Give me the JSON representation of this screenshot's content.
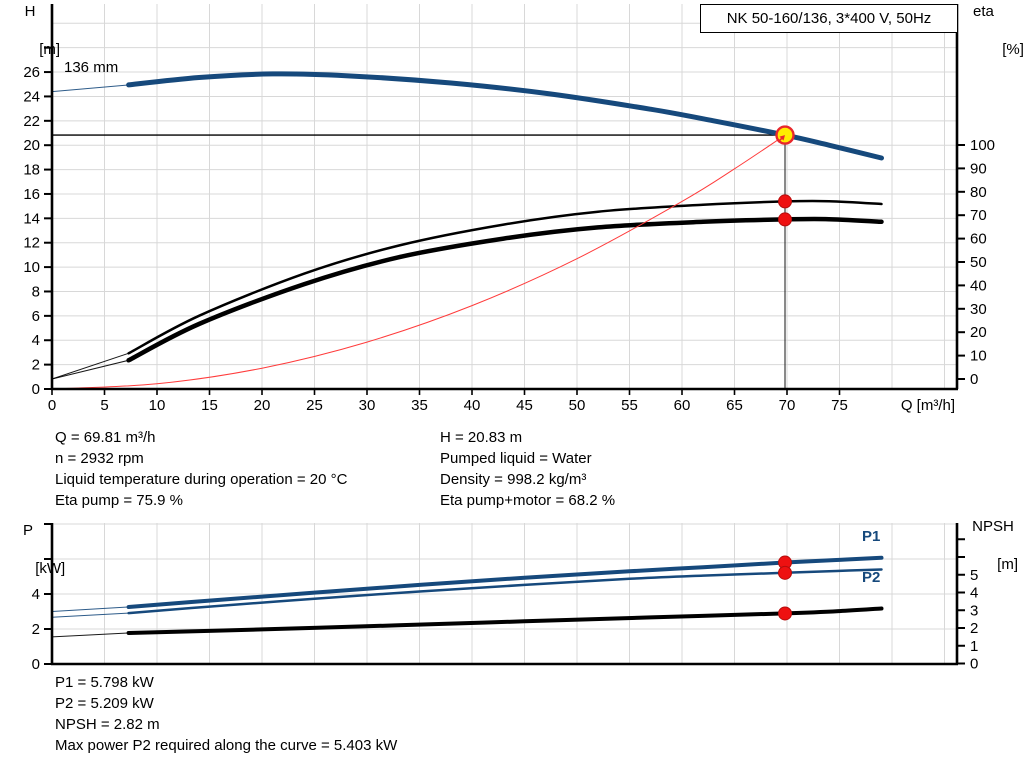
{
  "header": {
    "title_box": "NK 50-160/136, 3*400 V, 50Hz"
  },
  "colors": {
    "curve_blue": "#16497c",
    "curve_black": "#000000",
    "system_red": "#ff3b3b",
    "marker_red": "#ee1111",
    "marker_yellow": "#ffec00",
    "marker_ring_red": "#e8282d",
    "grid": "#d8d8d8",
    "axis": "#000000",
    "duty_line": "#3c3c3c"
  },
  "info_top": {
    "left": [
      "Q = 69.81 m³/h",
      "n = 2932 rpm",
      "Liquid temperature during operation = 20 °C",
      "Eta pump = 75.9 %"
    ],
    "right": [
      "H = 20.83 m",
      "Pumped liquid = Water",
      "Density = 998.2 kg/m³",
      "Eta pump+motor = 68.2 %"
    ]
  },
  "info_bottom": [
    "P1 = 5.798 kW",
    "P2 = 5.209 kW",
    "NPSH = 2.82 m",
    "Max power P2 required along the curve = 5.403 kW"
  ],
  "chart_data": [
    {
      "type": "line",
      "title": "NK 50-160/136, 3*400 V, 50Hz",
      "xlabel": "Q [m³/h]",
      "ylabel_left": [
        "H",
        "[m]"
      ],
      "ylabel_right": [
        "eta",
        "[%]"
      ],
      "curve_label": "136 mm",
      "x_range": [
        0,
        86.2
      ],
      "y_left_range": [
        0,
        31.6
      ],
      "y_right_range": [
        0,
        160
      ],
      "grid": true,
      "x_tick_labels": [
        0,
        5,
        10,
        15,
        20,
        25,
        30,
        35,
        40,
        45,
        50,
        55,
        60,
        65,
        70,
        75
      ],
      "x_gridlines": [
        5,
        10,
        15,
        20,
        25,
        30,
        35,
        40,
        45,
        50,
        55,
        60,
        65,
        70,
        75,
        80,
        85
      ],
      "y_left_tick_labels": [
        0,
        2,
        4,
        6,
        8,
        10,
        12,
        14,
        16,
        18,
        20,
        22,
        24,
        26
      ],
      "y_left_extra_ticks": [
        28
      ],
      "y_left_gridlines": [
        2,
        4,
        6,
        8,
        10,
        12,
        14,
        16,
        18,
        20,
        22,
        24,
        26,
        28,
        30
      ],
      "y_right_tick_labels": [
        0,
        10,
        20,
        30,
        40,
        50,
        60,
        70,
        80,
        90,
        100
      ],
      "series": [
        {
          "name": "head-curve-136mm",
          "axis": "left",
          "color": "curve_blue",
          "width": 5,
          "lead": [
            [
              0,
              24.4
            ],
            [
              7.3,
              24.95
            ]
          ],
          "points": [
            [
              7.3,
              24.95
            ],
            [
              14,
              25.55
            ],
            [
              21,
              25.85
            ],
            [
              28,
              25.7
            ],
            [
              38,
              25.1
            ],
            [
              47.5,
              24.2
            ],
            [
              57,
              22.95
            ],
            [
              63,
              22.0
            ],
            [
              69.81,
              20.83
            ],
            [
              74,
              20.0
            ],
            [
              79,
              18.95
            ]
          ]
        },
        {
          "name": "eta-pump-curve",
          "axis": "right",
          "color": "curve_black",
          "width": 2.5,
          "lead": [
            [
              0,
              0
            ],
            [
              7.3,
              11
            ]
          ],
          "points": [
            [
              7.3,
              11
            ],
            [
              14,
              27
            ],
            [
              24,
              45
            ],
            [
              33,
              57
            ],
            [
              43,
              66
            ],
            [
              52,
              71.5
            ],
            [
              62,
              74.5
            ],
            [
              69.81,
              75.9
            ],
            [
              74,
              76.0
            ],
            [
              79,
              74.8
            ]
          ]
        },
        {
          "name": "eta-pump-motor-curve",
          "axis": "right",
          "color": "curve_black",
          "width": 4.5,
          "lead": [
            [
              0,
              0
            ],
            [
              7.3,
              8
            ]
          ],
          "points": [
            [
              7.3,
              8
            ],
            [
              14,
              23.5
            ],
            [
              24,
              40.5
            ],
            [
              33,
              52
            ],
            [
              43,
              60
            ],
            [
              52,
              64.8
            ],
            [
              62,
              67.2
            ],
            [
              69.81,
              68.2
            ],
            [
              74,
              68.3
            ],
            [
              79,
              67.2
            ]
          ]
        },
        {
          "name": "system-curve",
          "axis": "left",
          "color": "system_red",
          "width": 1,
          "points": [
            [
              0,
              0
            ],
            [
              10,
              0.43
            ],
            [
              20,
              1.71
            ],
            [
              30,
              3.85
            ],
            [
              40,
              6.84
            ],
            [
              50,
              10.69
            ],
            [
              60,
              15.39
            ],
            [
              65,
              18.06
            ],
            [
              69.81,
              20.83
            ]
          ]
        }
      ],
      "duty": {
        "Q": 69.81,
        "H": 20.83,
        "eta_pump": 75.9,
        "eta_pump_motor": 68.2
      }
    },
    {
      "type": "line",
      "title": "",
      "xlabel": "",
      "ylabel_left": [
        "P",
        "[kW]"
      ],
      "ylabel_right": [
        "NPSH",
        "[m]"
      ],
      "x_range": [
        0,
        86.2
      ],
      "y_left_range": [
        0,
        8.1
      ],
      "y_right_range": [
        0,
        7.9
      ],
      "grid": true,
      "x_gridlines": [
        5,
        10,
        15,
        20,
        25,
        30,
        35,
        40,
        45,
        50,
        55,
        60,
        65,
        70,
        75,
        80,
        85
      ],
      "y_left_tick_labels": [
        0,
        2,
        4
      ],
      "y_left_extra_ticks": [
        6,
        8
      ],
      "y_left_gridlines": [
        2,
        4,
        6,
        8
      ],
      "y_right_tick_labels": [
        0,
        1,
        2,
        3,
        4,
        5
      ],
      "y_right_extra_ticks": [
        6,
        7
      ],
      "series": [
        {
          "name": "p1-curve",
          "axis": "left",
          "color": "curve_blue",
          "width": 4,
          "label": "P1",
          "lead": [
            [
              0,
              3.0
            ],
            [
              7.3,
              3.26
            ]
          ],
          "points": [
            [
              7.3,
              3.26
            ],
            [
              15,
              3.62
            ],
            [
              25,
              4.08
            ],
            [
              35,
              4.52
            ],
            [
              45,
              4.93
            ],
            [
              55,
              5.3
            ],
            [
              62,
              5.53
            ],
            [
              69.81,
              5.798
            ],
            [
              75,
              5.95
            ],
            [
              79,
              6.07
            ]
          ]
        },
        {
          "name": "p2-curve",
          "axis": "left",
          "color": "curve_blue",
          "width": 2.5,
          "label": "P2",
          "lead": [
            [
              0,
              2.67
            ],
            [
              7.3,
              2.91
            ]
          ],
          "points": [
            [
              7.3,
              2.91
            ],
            [
              15,
              3.28
            ],
            [
              25,
              3.73
            ],
            [
              35,
              4.14
            ],
            [
              45,
              4.52
            ],
            [
              55,
              4.87
            ],
            [
              62,
              5.05
            ],
            [
              69.81,
              5.209
            ],
            [
              75,
              5.32
            ],
            [
              79,
              5.4
            ]
          ]
        },
        {
          "name": "npsh-curve",
          "axis": "right",
          "color": "curve_black",
          "width": 4,
          "lead": [
            [
              0,
              1.5
            ],
            [
              7.3,
              1.72
            ]
          ],
          "points": [
            [
              7.3,
              1.72
            ],
            [
              20,
              1.92
            ],
            [
              33,
              2.15
            ],
            [
              45,
              2.38
            ],
            [
              57,
              2.6
            ],
            [
              69.81,
              2.82
            ],
            [
              75,
              2.95
            ],
            [
              79,
              3.1
            ]
          ]
        }
      ],
      "duty": {
        "Q": 69.81,
        "P1": 5.798,
        "P2": 5.209,
        "NPSH": 2.82
      }
    }
  ]
}
